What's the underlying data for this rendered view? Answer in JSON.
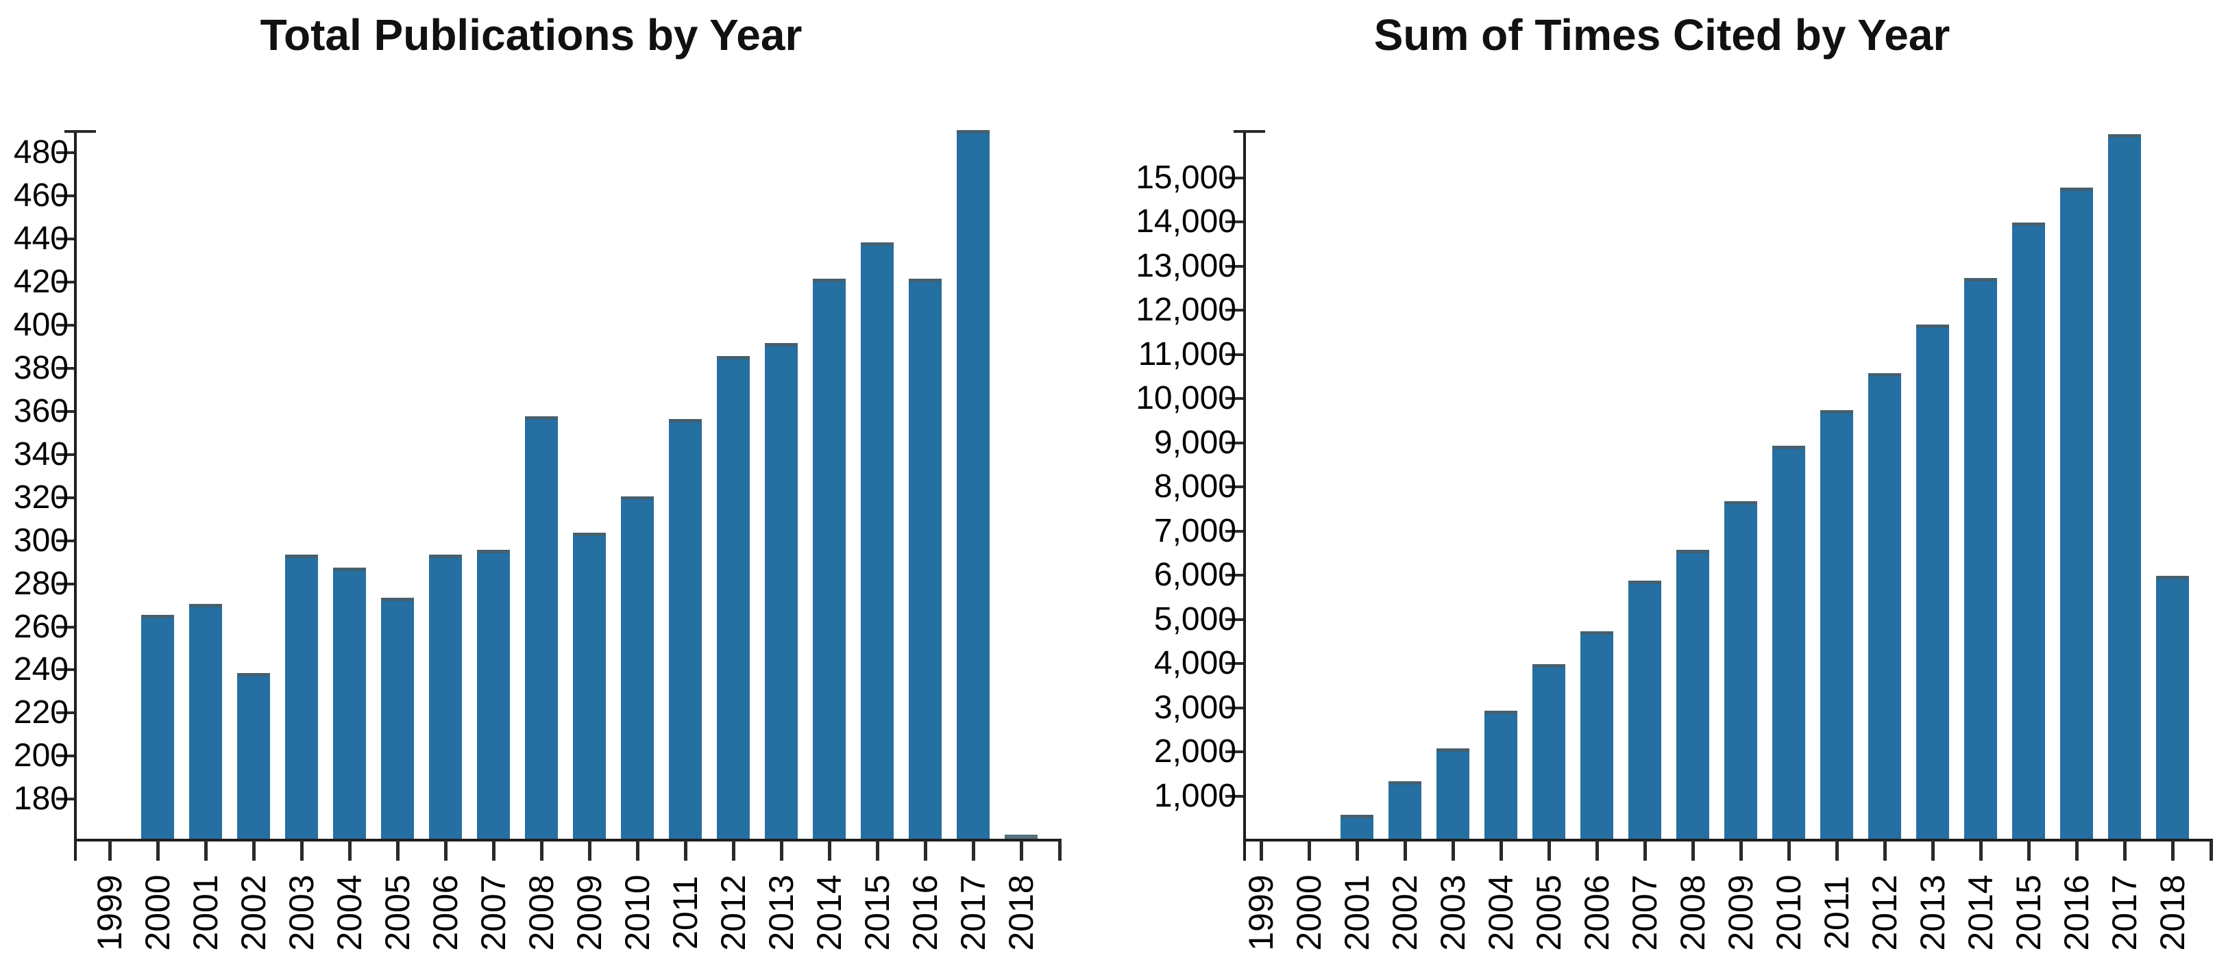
{
  "page": {
    "background": "#ffffff",
    "bar_color": "#256FA3",
    "bar_top_edge_color": "#45606F",
    "axis_color": "#1d1d1b",
    "text_color": "#000000"
  },
  "chart_data": [
    {
      "type": "bar",
      "id": "publications",
      "title": "Total Publications by Year",
      "xlabel": "",
      "ylabel": "",
      "legend": "none",
      "grid": "off",
      "categories": [
        "1999",
        "2000",
        "2001",
        "2002",
        "2003",
        "2004",
        "2005",
        "2006",
        "2007",
        "2008",
        "2009",
        "2010",
        "2011",
        "2012",
        "2013",
        "2014",
        "2015",
        "2016",
        "2017",
        "2018"
      ],
      "values": [
        0,
        265,
        270,
        238,
        293,
        287,
        273,
        293,
        295,
        357,
        303,
        320,
        356,
        385,
        391,
        421,
        438,
        421,
        490,
        163
      ],
      "ylim": [
        161,
        490
      ],
      "y_tick_values": [
        180,
        200,
        220,
        240,
        260,
        280,
        300,
        320,
        340,
        360,
        380,
        400,
        420,
        440,
        460,
        480
      ],
      "y_tick_labels": [
        "180",
        "200",
        "220",
        "240",
        "260",
        "280",
        "300",
        "320",
        "340",
        "360",
        "380",
        "400",
        "420",
        "440",
        "460",
        "480"
      ]
    },
    {
      "type": "bar",
      "id": "citations",
      "title": "Sum of Times Cited by Year",
      "xlabel": "",
      "ylabel": "",
      "legend": "none",
      "grid": "off",
      "categories": [
        "1999",
        "2000",
        "2001",
        "2002",
        "2003",
        "2004",
        "2005",
        "2006",
        "2007",
        "2008",
        "2009",
        "2010",
        "2011",
        "2012",
        "2013",
        "2014",
        "2015",
        "2016",
        "2017",
        "2018"
      ],
      "values": [
        0,
        0,
        550,
        1300,
        2050,
        2900,
        3950,
        4700,
        5850,
        6550,
        7650,
        8900,
        9700,
        10550,
        11650,
        12700,
        13950,
        14750,
        15950,
        5950
      ],
      "ylim": [
        0,
        16050
      ],
      "y_tick_values": [
        1000,
        2000,
        3000,
        4000,
        5000,
        6000,
        7000,
        8000,
        9000,
        10000,
        11000,
        12000,
        13000,
        14000,
        15000
      ],
      "y_tick_labels": [
        "1,000",
        "2,000",
        "3,000",
        "4,000",
        "5,000",
        "6,000",
        "7,000",
        "8,000",
        "9,000",
        "10,000",
        "11,000",
        "12,000",
        "13,000",
        "14,000",
        "15,000"
      ]
    }
  ]
}
